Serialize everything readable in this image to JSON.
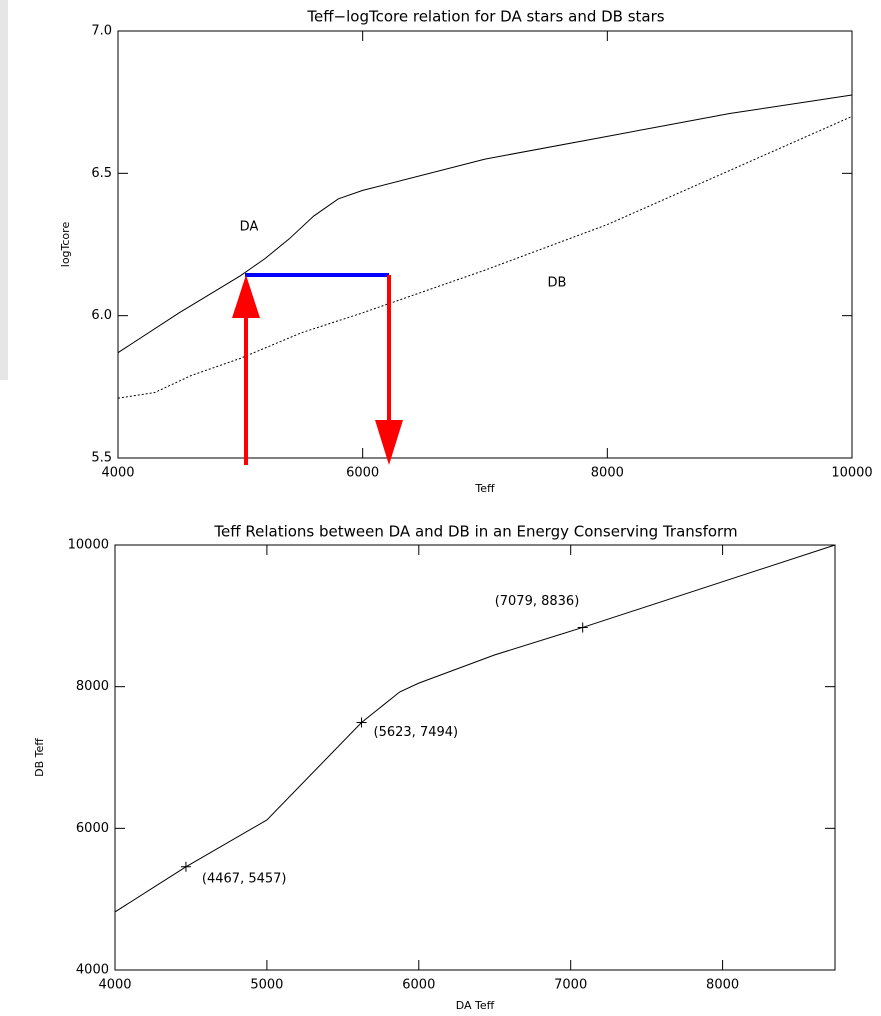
{
  "chart_data": [
    {
      "type": "line",
      "title": "Teff−logTcore relation for DA stars and DB stars",
      "xlabel": "Teff",
      "ylabel": "logTcore",
      "xlim": [
        4000,
        10000
      ],
      "ylim": [
        5.5,
        7.0
      ],
      "xticks": [
        4000,
        6000,
        8000,
        10000
      ],
      "yticks": [
        5.5,
        {
          "value": 6,
          "label": "6.0"
        },
        6.5,
        {
          "value": 7,
          "label": "7.0"
        }
      ],
      "annotations": [
        "DA",
        "DB"
      ],
      "series": [
        {
          "name": "DA",
          "color": "#000000",
          "line_style": "solid",
          "x": [
            4000,
            4500,
            5000,
            5200,
            5400,
            5600,
            5800,
            6000,
            7000,
            8000,
            9000,
            10000
          ],
          "values": [
            5.87,
            6.01,
            6.14,
            6.2,
            6.27,
            6.35,
            6.41,
            6.44,
            6.55,
            6.63,
            6.71,
            6.775
          ]
        },
        {
          "name": "DB",
          "color": "#000000",
          "line_style": "dotted",
          "x": [
            4000,
            4300,
            4600,
            5000,
            5500,
            6000,
            7000,
            8000,
            9000,
            10000
          ],
          "values": [
            5.71,
            5.73,
            5.79,
            5.85,
            5.94,
            6.01,
            6.16,
            6.32,
            6.51,
            6.7
          ]
        }
      ]
    },
    {
      "type": "line",
      "title": "Teff Relations between DA and DB in an Energy Conserving Transform",
      "xlabel": "DA Teff",
      "ylabel": "DB Teff",
      "xlim": [
        4000,
        8740
      ],
      "ylim": [
        4000,
        10000
      ],
      "xticks": [
        4000,
        5000,
        6000,
        7000,
        8000
      ],
      "yticks": [
        4000,
        6000,
        8000,
        10000
      ],
      "series": [
        {
          "color": "#000000",
          "line_style": "solid",
          "x": [
            4000,
            4467,
            5000,
            5623,
            5875,
            6000,
            6500,
            7079,
            8740
          ],
          "values": [
            4820,
            5457,
            6118,
            7494,
            7926,
            8050,
            8449,
            8836,
            10000
          ]
        }
      ],
      "points": {
        "x": [
          4467,
          5623,
          7079
        ],
        "values": [
          5457,
          7494,
          8836
        ],
        "labels": [
          "(4467, 5457)",
          "(5623, 7494)",
          "(7079, 8836)"
        ]
      }
    }
  ]
}
